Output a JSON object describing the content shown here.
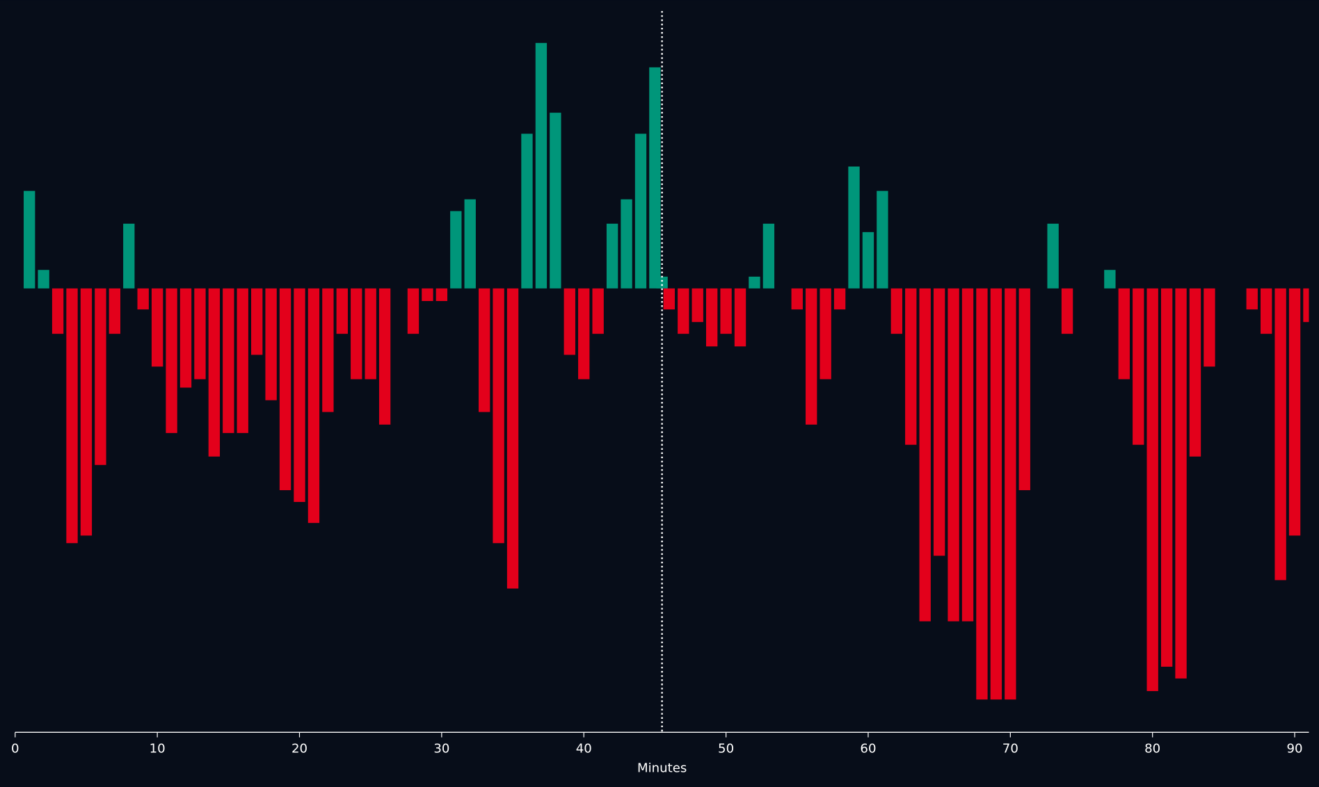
{
  "chart_data": {
    "type": "bar",
    "xlabel": "Minutes",
    "x": [
      1,
      2,
      3,
      4,
      5,
      6,
      7,
      8,
      9,
      10,
      11,
      12,
      13,
      14,
      15,
      16,
      17,
      18,
      19,
      20,
      21,
      22,
      23,
      24,
      25,
      26,
      27,
      28,
      29,
      30,
      31,
      32,
      33,
      34,
      35,
      36,
      37,
      38,
      39,
      40,
      41,
      42,
      43,
      44,
      45,
      45.5,
      46,
      47,
      48,
      49,
      50,
      51,
      52,
      53,
      54,
      55,
      56,
      57,
      58,
      59,
      60,
      61,
      62,
      63,
      64,
      65,
      66,
      67,
      68,
      69,
      70,
      71,
      72,
      73,
      74,
      75,
      76,
      77,
      78,
      79,
      80,
      81,
      82,
      83,
      84,
      85,
      86,
      87,
      88,
      89,
      90,
      91
    ],
    "values": [
      116,
      22,
      -54,
      -303,
      -294,
      -210,
      -54,
      77,
      -25,
      -93,
      -172,
      -118,
      -108,
      -200,
      -172,
      -172,
      -79,
      -133,
      -240,
      -254,
      -279,
      -147,
      -54,
      -108,
      -108,
      -162,
      0,
      -54,
      -15,
      -15,
      92,
      106,
      -147,
      -303,
      -357,
      184,
      292,
      209,
      -79,
      -108,
      -54,
      77,
      106,
      184,
      263,
      14,
      -25,
      -54,
      -40,
      -69,
      -54,
      -69,
      14,
      77,
      0,
      -25,
      -162,
      -108,
      -25,
      145,
      67,
      116,
      -54,
      -186,
      -396,
      -318,
      -396,
      -396,
      -489,
      -489,
      -489,
      -240,
      0,
      77,
      -54,
      0,
      0,
      22,
      -108,
      -186,
      -479,
      -450,
      -464,
      -200,
      -93,
      0,
      0,
      -25,
      -54,
      -347,
      -294,
      -40
    ],
    "positive_color": "#00967a",
    "negative_color": "#e3001b",
    "vline": {
      "x": 45.5,
      "color": "#ffffff",
      "style": "dotted"
    },
    "xlim": [
      0,
      91
    ],
    "xticks": [
      0,
      10,
      20,
      30,
      40,
      50,
      60,
      70,
      80,
      90
    ],
    "ylim": [
      -528,
      333
    ],
    "grid": false
  }
}
